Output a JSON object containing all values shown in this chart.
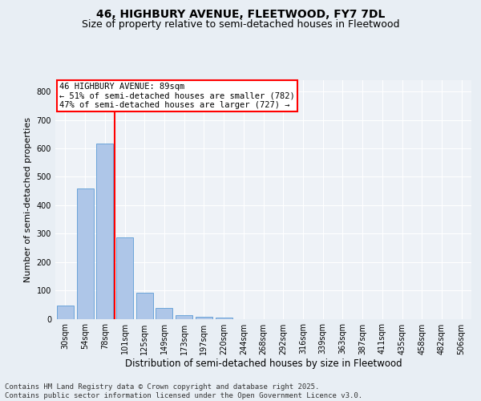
{
  "title1": "46, HIGHBURY AVENUE, FLEETWOOD, FY7 7DL",
  "title2": "Size of property relative to semi-detached houses in Fleetwood",
  "xlabel": "Distribution of semi-detached houses by size in Fleetwood",
  "ylabel": "Number of semi-detached properties",
  "categories": [
    "30sqm",
    "54sqm",
    "78sqm",
    "101sqm",
    "125sqm",
    "149sqm",
    "173sqm",
    "197sqm",
    "220sqm",
    "244sqm",
    "268sqm",
    "292sqm",
    "316sqm",
    "339sqm",
    "363sqm",
    "387sqm",
    "411sqm",
    "435sqm",
    "458sqm",
    "482sqm",
    "506sqm"
  ],
  "values": [
    47,
    460,
    617,
    288,
    93,
    37,
    14,
    8,
    5,
    0,
    0,
    0,
    0,
    0,
    0,
    0,
    0,
    0,
    0,
    0,
    0
  ],
  "bar_color": "#aec6e8",
  "bar_edge_color": "#5b9bd5",
  "vline_index": 2,
  "vline_color": "red",
  "annotation_title": "46 HIGHBURY AVENUE: 89sqm",
  "annotation_line2": "← 51% of semi-detached houses are smaller (782)",
  "annotation_line3": "47% of semi-detached houses are larger (727) →",
  "annotation_box_color": "white",
  "annotation_box_edge": "red",
  "ylim": [
    0,
    840
  ],
  "yticks": [
    0,
    100,
    200,
    300,
    400,
    500,
    600,
    700,
    800
  ],
  "bg_color": "#e8eef4",
  "plot_bg_color": "#eef2f7",
  "footer": "Contains HM Land Registry data © Crown copyright and database right 2025.\nContains public sector information licensed under the Open Government Licence v3.0.",
  "title1_fontsize": 10,
  "title2_fontsize": 9,
  "xlabel_fontsize": 8.5,
  "ylabel_fontsize": 8,
  "tick_fontsize": 7,
  "annotation_fontsize": 7.5,
  "footer_fontsize": 6.5
}
